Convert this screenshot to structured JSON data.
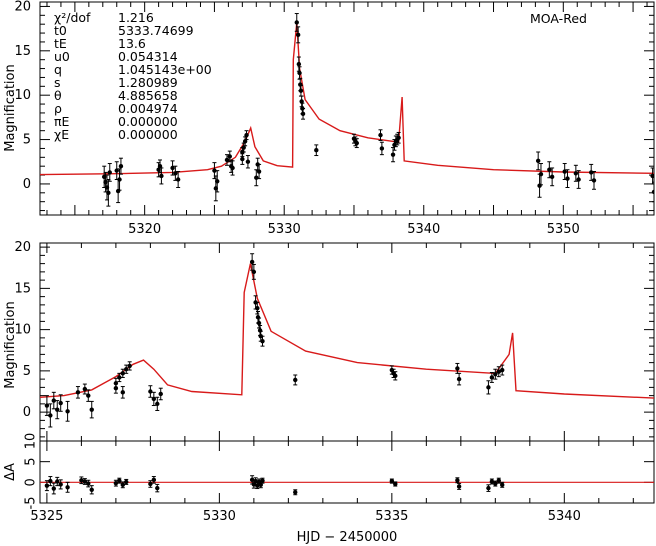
{
  "chart_data": [
    {
      "type": "scatter",
      "panel": "top",
      "ylabel": "Magnification",
      "xlim": [
        5312.5,
        5356.5
      ],
      "ylim": [
        -3.5,
        20.5
      ],
      "xticks": [
        5320,
        5330,
        5340,
        5350
      ],
      "yticks": [
        0,
        5,
        10,
        15,
        20
      ],
      "label": "MOA-Red",
      "params": [
        {
          "name": "χ²/dof",
          "value": "1.216"
        },
        {
          "name": "t0",
          "value": "5333.74699"
        },
        {
          "name": "tE",
          "value": "13.6"
        },
        {
          "name": "u0",
          "value": "0.054314"
        },
        {
          "name": "q",
          "value": "1.045143e+00"
        },
        {
          "name": "s",
          "value": "1.280989"
        },
        {
          "name": "θ",
          "value": "4.885658"
        },
        {
          "name": "ρ",
          "value": "0.004974"
        },
        {
          "name": "πE",
          "value": "0.000000"
        },
        {
          "name": "χE",
          "value": "0.000000"
        }
      ],
      "model": [
        [
          5312.5,
          1.05
        ],
        [
          5318,
          1.15
        ],
        [
          5322,
          1.3
        ],
        [
          5324.5,
          1.6
        ],
        [
          5325.5,
          2.0
        ],
        [
          5326.5,
          3.0
        ],
        [
          5327.2,
          4.8
        ],
        [
          5327.6,
          6.3
        ],
        [
          5327.9,
          4.2
        ],
        [
          5328.5,
          2.6
        ],
        [
          5329.5,
          2.05
        ],
        [
          5330.6,
          1.9
        ],
        [
          5330.65,
          14.0
        ],
        [
          5330.9,
          18.2
        ],
        [
          5331.1,
          13.0
        ],
        [
          5331.5,
          9.5
        ],
        [
          5332.5,
          7.3
        ],
        [
          5334,
          6.0
        ],
        [
          5336,
          5.2
        ],
        [
          5338.2,
          4.7
        ],
        [
          5338.45,
          9.8
        ],
        [
          5338.6,
          2.6
        ],
        [
          5341,
          2.1
        ],
        [
          5345,
          1.6
        ],
        [
          5350,
          1.35
        ],
        [
          5356.5,
          1.2
        ]
      ],
      "points": [
        [
          5317.1,
          0.8,
          1.2
        ],
        [
          5317.3,
          -0.4,
          1.4
        ],
        [
          5317.5,
          1.3,
          1.0
        ],
        [
          5317.2,
          0.2,
          1.1
        ],
        [
          5317.4,
          -1.0,
          1.5
        ],
        [
          5318.0,
          1.5,
          1.0
        ],
        [
          5318.2,
          0.5,
          1.2
        ],
        [
          5318.1,
          -0.8,
          1.3
        ],
        [
          5318.3,
          2.0,
          0.9
        ],
        [
          5321.0,
          1.6,
          0.8
        ],
        [
          5321.2,
          0.9,
          0.9
        ],
        [
          5321.1,
          2.0,
          0.7
        ],
        [
          5322.0,
          1.8,
          0.8
        ],
        [
          5322.2,
          1.2,
          0.8
        ],
        [
          5322.4,
          0.5,
          0.9
        ],
        [
          5325.0,
          1.5,
          0.9
        ],
        [
          5325.2,
          0.3,
          1.2
        ],
        [
          5325.1,
          -0.5,
          1.4
        ],
        [
          5325.9,
          2.7,
          0.6
        ],
        [
          5326.1,
          3.1,
          0.6
        ],
        [
          5326.3,
          1.8,
          0.8
        ],
        [
          5326.2,
          2.0,
          0.7
        ],
        [
          5327.0,
          3.6,
          0.5
        ],
        [
          5327.1,
          4.1,
          0.5
        ],
        [
          5327.2,
          4.8,
          0.5
        ],
        [
          5327.3,
          5.5,
          0.5
        ],
        [
          5327.0,
          2.8,
          0.6
        ],
        [
          5327.4,
          2.5,
          0.7
        ],
        [
          5328.1,
          2.2,
          0.7
        ],
        [
          5328.2,
          1.4,
          0.8
        ],
        [
          5328.0,
          0.7,
          0.9
        ],
        [
          5330.9,
          18.2,
          1.0
        ],
        [
          5331.0,
          16.8,
          0.9
        ],
        [
          5331.05,
          13.5,
          0.8
        ],
        [
          5331.1,
          12.5,
          0.7
        ],
        [
          5331.15,
          11.2,
          0.7
        ],
        [
          5331.2,
          10.5,
          0.6
        ],
        [
          5331.25,
          9.3,
          0.6
        ],
        [
          5331.3,
          8.5,
          0.6
        ],
        [
          5331.35,
          7.9,
          0.6
        ],
        [
          5332.3,
          3.8,
          0.6
        ],
        [
          5335.0,
          5.1,
          0.5
        ],
        [
          5335.1,
          4.8,
          0.5
        ],
        [
          5335.2,
          4.6,
          0.5
        ],
        [
          5336.9,
          5.5,
          0.6
        ],
        [
          5337.0,
          4.0,
          0.7
        ],
        [
          5337.9,
          4.4,
          0.6
        ],
        [
          5338.0,
          4.8,
          0.6
        ],
        [
          5338.1,
          5.0,
          0.6
        ],
        [
          5338.2,
          5.2,
          0.6
        ],
        [
          5337.8,
          3.3,
          0.8
        ],
        [
          5348.2,
          2.6,
          1.0
        ],
        [
          5348.4,
          1.1,
          1.2
        ],
        [
          5348.3,
          -0.2,
          1.3
        ],
        [
          5349.0,
          1.6,
          0.9
        ],
        [
          5349.2,
          0.8,
          1.0
        ],
        [
          5350.1,
          1.4,
          0.9
        ],
        [
          5350.3,
          0.6,
          1.0
        ],
        [
          5350.9,
          1.2,
          0.9
        ],
        [
          5351.1,
          0.5,
          1.0
        ],
        [
          5352.0,
          1.3,
          0.9
        ],
        [
          5352.2,
          0.4,
          1.0
        ],
        [
          5356.4,
          0.9,
          0.9
        ],
        [
          5356.5,
          -0.9,
          1.1
        ]
      ]
    },
    {
      "type": "scatter",
      "panel": "middle",
      "ylabel": "Magnification",
      "xlim": [
        5324.8,
        5342.6
      ],
      "ylim": [
        -3.5,
        20.5
      ],
      "yticks": [
        0,
        5,
        10,
        15,
        20
      ],
      "model": [
        [
          5324.8,
          1.8
        ],
        [
          5325.5,
          2.0
        ],
        [
          5326.3,
          2.7
        ],
        [
          5327.0,
          4.3
        ],
        [
          5327.5,
          5.8
        ],
        [
          5327.8,
          6.3
        ],
        [
          5328.1,
          5.2
        ],
        [
          5328.5,
          3.3
        ],
        [
          5329.2,
          2.5
        ],
        [
          5330.65,
          2.1
        ],
        [
          5330.72,
          14.5
        ],
        [
          5330.9,
          18.0
        ],
        [
          5331.1,
          13.8
        ],
        [
          5331.5,
          9.8
        ],
        [
          5332.5,
          7.4
        ],
        [
          5334,
          6.0
        ],
        [
          5336,
          5.2
        ],
        [
          5338.0,
          4.7
        ],
        [
          5338.4,
          7.0
        ],
        [
          5338.5,
          9.6
        ],
        [
          5338.6,
          2.6
        ],
        [
          5340,
          2.2
        ],
        [
          5342.6,
          1.7
        ]
      ],
      "points": [
        [
          5325.0,
          0.8,
          1.2
        ],
        [
          5325.1,
          -0.4,
          1.4
        ],
        [
          5325.2,
          1.4,
          1.0
        ],
        [
          5325.3,
          0.3,
          1.1
        ],
        [
          5325.4,
          1.1,
          1.0
        ],
        [
          5325.6,
          0.1,
          1.2
        ],
        [
          5325.9,
          2.4,
          0.7
        ],
        [
          5326.1,
          2.8,
          0.6
        ],
        [
          5326.2,
          2.0,
          0.7
        ],
        [
          5326.3,
          0.3,
          1.0
        ],
        [
          5327.0,
          3.5,
          0.6
        ],
        [
          5327.1,
          4.2,
          0.5
        ],
        [
          5327.2,
          4.7,
          0.5
        ],
        [
          5327.3,
          5.2,
          0.5
        ],
        [
          5327.4,
          5.6,
          0.5
        ],
        [
          5327.0,
          2.9,
          0.6
        ],
        [
          5327.2,
          2.4,
          0.7
        ],
        [
          5328.0,
          2.5,
          0.7
        ],
        [
          5328.1,
          1.6,
          0.8
        ],
        [
          5328.2,
          1.0,
          0.8
        ],
        [
          5328.3,
          2.2,
          0.7
        ],
        [
          5330.95,
          18.2,
          1.0
        ],
        [
          5331.0,
          17.0,
          0.9
        ],
        [
          5331.05,
          13.3,
          0.8
        ],
        [
          5331.1,
          12.6,
          0.7
        ],
        [
          5331.12,
          11.5,
          0.7
        ],
        [
          5331.15,
          10.8,
          0.6
        ],
        [
          5331.18,
          9.9,
          0.6
        ],
        [
          5331.2,
          9.2,
          0.6
        ],
        [
          5331.25,
          8.6,
          0.6
        ],
        [
          5332.2,
          3.9,
          0.6
        ],
        [
          5335.0,
          5.1,
          0.5
        ],
        [
          5335.05,
          4.7,
          0.5
        ],
        [
          5335.1,
          4.4,
          0.5
        ],
        [
          5336.9,
          5.3,
          0.6
        ],
        [
          5336.95,
          4.0,
          0.7
        ],
        [
          5337.8,
          3.0,
          0.8
        ],
        [
          5337.9,
          4.2,
          0.6
        ],
        [
          5338.0,
          4.6,
          0.6
        ],
        [
          5338.1,
          4.9,
          0.6
        ],
        [
          5338.2,
          5.1,
          0.6
        ]
      ]
    },
    {
      "type": "scatter",
      "panel": "residuals",
      "ylabel": "ΔA",
      "xlabel": "HJD − 2450000",
      "xlim": [
        5324.8,
        5342.6
      ],
      "ylim": [
        -5,
        10
      ],
      "xticks": [
        5325,
        5330,
        5335,
        5340
      ],
      "yticks": [
        -5,
        0,
        5,
        10
      ],
      "points": [
        [
          5325.0,
          -0.8,
          1.2
        ],
        [
          5325.1,
          0.3,
          1.1
        ],
        [
          5325.2,
          -1.5,
          1.3
        ],
        [
          5325.3,
          0.2,
          1.0
        ],
        [
          5325.4,
          -0.5,
          1.1
        ],
        [
          5325.6,
          -1.2,
          1.2
        ],
        [
          5326.0,
          0.5,
          0.8
        ],
        [
          5326.1,
          0.2,
          0.7
        ],
        [
          5326.2,
          -0.3,
          0.8
        ],
        [
          5326.3,
          -1.8,
          1.0
        ],
        [
          5327.0,
          -0.2,
          0.7
        ],
        [
          5327.1,
          0.4,
          0.6
        ],
        [
          5327.2,
          -0.6,
          0.7
        ],
        [
          5327.3,
          0.1,
          0.6
        ],
        [
          5328.0,
          -0.4,
          0.8
        ],
        [
          5328.1,
          0.6,
          0.8
        ],
        [
          5328.2,
          -1.4,
          0.9
        ],
        [
          5330.95,
          0.6,
          1.0
        ],
        [
          5331.0,
          -0.5,
          0.9
        ],
        [
          5331.05,
          0.3,
          0.8
        ],
        [
          5331.1,
          -0.8,
          0.7
        ],
        [
          5331.15,
          0.1,
          0.7
        ],
        [
          5331.2,
          -0.6,
          0.7
        ],
        [
          5331.25,
          0.4,
          0.6
        ],
        [
          5332.2,
          -2.4,
          0.6
        ],
        [
          5335.0,
          0.3,
          0.5
        ],
        [
          5335.1,
          -0.4,
          0.5
        ],
        [
          5336.9,
          0.5,
          0.6
        ],
        [
          5336.95,
          -1.0,
          0.7
        ],
        [
          5337.8,
          -1.4,
          0.8
        ],
        [
          5337.9,
          0.2,
          0.6
        ],
        [
          5338.0,
          -0.3,
          0.6
        ],
        [
          5338.1,
          0.4,
          0.6
        ],
        [
          5338.2,
          -0.6,
          0.6
        ]
      ]
    }
  ],
  "colors": {
    "model": "#d81a1a",
    "points": "#000000",
    "axes": "#000000"
  }
}
